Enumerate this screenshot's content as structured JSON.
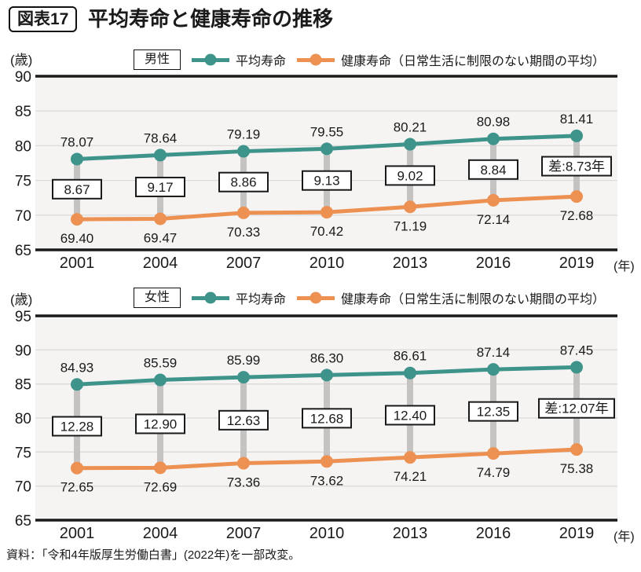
{
  "header": {
    "tag": "図表17",
    "title": "平均寿命と健康寿命の推移"
  },
  "source": "資料：「令和4年版厚生労働白書」(2022年)を一部改変。",
  "colors": {
    "life": "#3e948b",
    "healthy": "#ec9152",
    "connector": "#c5c3c1",
    "plot_bg": "#f5f4f3",
    "grid": "#dcdbd9",
    "axis": "#1a1a1a",
    "text": "#1a1a1a",
    "box_bg": "#ffffff"
  },
  "chart_data": [
    {
      "type": "line",
      "group_label": "男性",
      "title": "平均寿命と健康寿命の推移（男性）",
      "x": [
        2001,
        2004,
        2007,
        2010,
        2013,
        2016,
        2019
      ],
      "xlabel": "(年)",
      "ylabel": "(歳)",
      "ylim": [
        65,
        90
      ],
      "yticks": [
        65,
        70,
        75,
        80,
        85,
        90
      ],
      "grid": true,
      "legend_position": "top",
      "series": [
        {
          "name": "平均寿命",
          "color_key": "life",
          "values": [
            78.07,
            78.64,
            79.19,
            79.55,
            80.21,
            80.98,
            81.41
          ],
          "labels": [
            "78.07",
            "78.64",
            "79.19",
            "79.55",
            "80.21",
            "80.98",
            "81.41"
          ]
        },
        {
          "name": "健康寿命（日常生活に制限のない期間の平均）",
          "color_key": "healthy",
          "values": [
            69.4,
            69.47,
            70.33,
            70.42,
            71.19,
            72.14,
            72.68
          ],
          "labels": [
            "69.40",
            "69.47",
            "70.33",
            "70.42",
            "71.19",
            "72.14",
            "72.68"
          ]
        }
      ],
      "diff_labels": [
        "8.67",
        "9.17",
        "8.86",
        "9.13",
        "9.02",
        "8.84",
        "差:8.73年"
      ]
    },
    {
      "type": "line",
      "group_label": "女性",
      "title": "平均寿命と健康寿命の推移（女性）",
      "x": [
        2001,
        2004,
        2007,
        2010,
        2013,
        2016,
        2019
      ],
      "xlabel": "(年)",
      "ylabel": "(歳)",
      "ylim": [
        65,
        95
      ],
      "yticks": [
        65,
        70,
        75,
        80,
        85,
        90,
        95
      ],
      "grid": true,
      "legend_position": "top",
      "series": [
        {
          "name": "平均寿命",
          "color_key": "life",
          "values": [
            84.93,
            85.59,
            85.99,
            86.3,
            86.61,
            87.14,
            87.45
          ],
          "labels": [
            "84.93",
            "85.59",
            "85.99",
            "86.30",
            "86.61",
            "87.14",
            "87.45"
          ]
        },
        {
          "name": "健康寿命（日常生活に制限のない期間の平均）",
          "color_key": "healthy",
          "values": [
            72.65,
            72.69,
            73.36,
            73.62,
            74.21,
            74.79,
            75.38
          ],
          "labels": [
            "72.65",
            "72.69",
            "73.36",
            "73.62",
            "74.21",
            "74.79",
            "75.38"
          ]
        }
      ],
      "diff_labels": [
        "12.28",
        "12.90",
        "12.63",
        "12.68",
        "12.40",
        "12.35",
        "差:12.07年"
      ]
    }
  ]
}
